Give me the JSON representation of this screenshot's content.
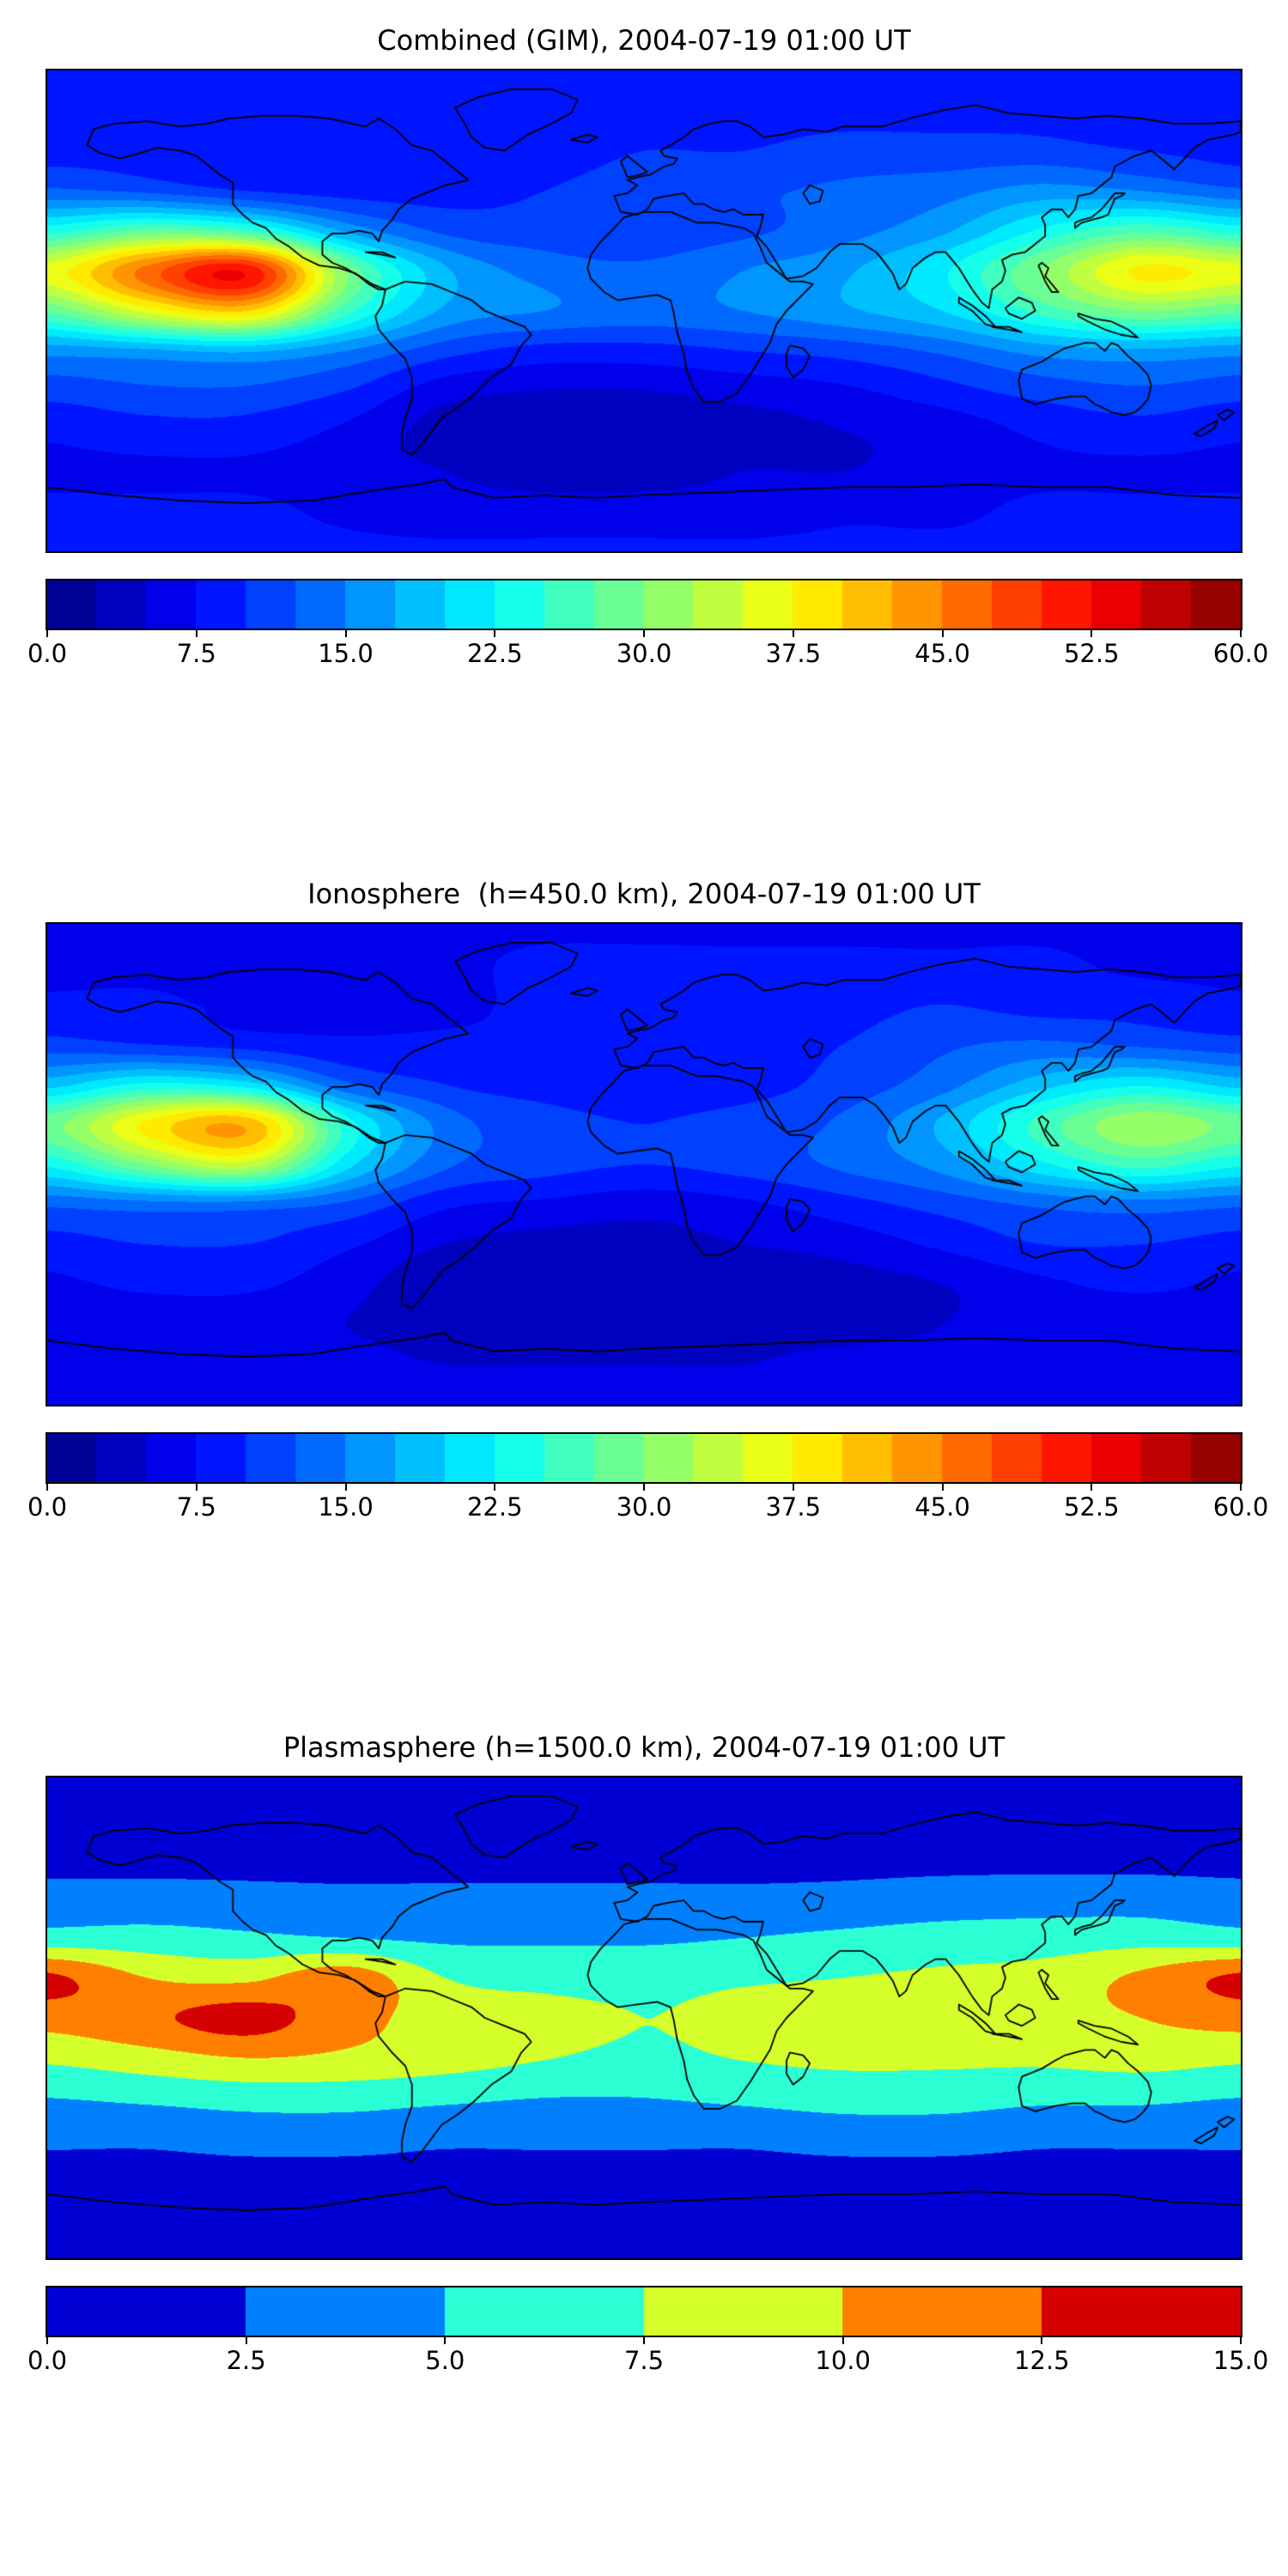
{
  "figure": {
    "background": "#ffffff",
    "map_outline_color": "#000000"
  },
  "chart_data": [
    {
      "type": "heatmap",
      "title": "Combined (GIM), 2004-07-19 01:00 UT",
      "projection": "equirectangular-world-map-with-coastlines",
      "colormap": "jet",
      "levels_min": 0,
      "levels_max": 60,
      "level_step": 2.5,
      "colorbar_orientation": "horizontal",
      "colorbar_ticks": [
        "0.0",
        "7.5",
        "15.0",
        "22.5",
        "30.0",
        "37.5",
        "45.0",
        "52.5",
        "60.0"
      ],
      "grid_lons": [
        -180,
        -150,
        -120,
        -90,
        -60,
        -30,
        0,
        30,
        60,
        90,
        120,
        150,
        180
      ],
      "grid_lats": [
        90,
        75,
        60,
        45,
        30,
        15,
        0,
        -15,
        -30,
        -45,
        -60,
        -75,
        -90
      ],
      "values": [
        [
          8,
          8,
          8,
          8,
          8,
          8,
          8,
          8,
          8,
          8,
          8,
          8,
          8
        ],
        [
          8,
          8,
          8,
          8,
          8,
          9,
          9,
          9,
          9,
          9,
          9,
          8,
          8
        ],
        [
          9,
          9,
          8,
          8,
          8,
          9,
          10,
          10,
          11,
          11,
          11,
          10,
          9
        ],
        [
          13,
          12,
          10,
          9,
          9,
          10,
          11,
          12,
          13,
          14,
          16,
          15,
          13
        ],
        [
          24,
          28,
          26,
          17,
          12,
          11,
          11,
          12,
          14,
          17,
          23,
          27,
          24
        ],
        [
          36,
          46,
          52,
          30,
          18,
          14,
          13,
          15,
          17,
          22,
          30,
          38,
          36
        ],
        [
          28,
          36,
          40,
          26,
          17,
          15,
          14,
          15,
          17,
          20,
          26,
          30,
          28
        ],
        [
          16,
          17,
          18,
          15,
          11,
          9,
          9,
          10,
          11,
          13,
          16,
          17,
          16
        ],
        [
          11,
          12,
          12,
          10,
          6,
          5,
          5,
          6,
          7,
          9,
          11,
          12,
          11
        ],
        [
          8,
          9,
          9,
          7,
          4,
          3,
          3,
          4,
          5,
          6,
          8,
          9,
          8
        ],
        [
          7,
          7,
          7,
          6,
          5,
          4,
          4,
          5,
          5,
          6,
          7,
          7,
          7
        ],
        [
          8,
          8,
          8,
          7,
          6,
          6,
          6,
          6,
          7,
          7,
          8,
          8,
          8
        ],
        [
          8,
          8,
          8,
          8,
          8,
          8,
          8,
          8,
          8,
          8,
          8,
          8,
          8
        ]
      ]
    },
    {
      "type": "heatmap",
      "title": "Ionosphere  (h=450.0 km), 2004-07-19 01:00 UT",
      "projection": "equirectangular-world-map-with-coastlines",
      "colormap": "jet",
      "levels_min": 0,
      "levels_max": 60,
      "level_step": 2.5,
      "colorbar_orientation": "horizontal",
      "colorbar_ticks": [
        "0.0",
        "7.5",
        "15.0",
        "22.5",
        "30.0",
        "37.5",
        "45.0",
        "52.5",
        "60.0"
      ],
      "grid_lons": [
        -180,
        -150,
        -120,
        -90,
        -60,
        -30,
        0,
        30,
        60,
        90,
        120,
        150,
        180
      ],
      "grid_lats": [
        90,
        75,
        60,
        45,
        30,
        15,
        0,
        -15,
        -30,
        -45,
        -60,
        -75,
        -90
      ],
      "values": [
        [
          7,
          7,
          7,
          7,
          7,
          7,
          7,
          7,
          7,
          7,
          7,
          7,
          7
        ],
        [
          7,
          7,
          7,
          7,
          7,
          8,
          8,
          8,
          8,
          8,
          8,
          7,
          7
        ],
        [
          8,
          8,
          7,
          7,
          7,
          8,
          8,
          9,
          9,
          10,
          9,
          9,
          8
        ],
        [
          11,
          10,
          9,
          8,
          8,
          8,
          9,
          9,
          10,
          12,
          13,
          12,
          11
        ],
        [
          19,
          23,
          21,
          13,
          10,
          9,
          9,
          9,
          11,
          14,
          19,
          22,
          19
        ],
        [
          29,
          38,
          42,
          24,
          14,
          11,
          10,
          11,
          13,
          18,
          26,
          32,
          29
        ],
        [
          23,
          30,
          34,
          21,
          13,
          11,
          10,
          11,
          13,
          16,
          22,
          26,
          23
        ],
        [
          13,
          14,
          14,
          12,
          8,
          7,
          6,
          7,
          9,
          11,
          13,
          14,
          13
        ],
        [
          9,
          10,
          10,
          8,
          5,
          4,
          4,
          5,
          6,
          8,
          10,
          10,
          9
        ],
        [
          7,
          8,
          8,
          6,
          3,
          3,
          3,
          3,
          4,
          5,
          7,
          8,
          7
        ],
        [
          6,
          6,
          6,
          5,
          4,
          4,
          4,
          4,
          4,
          5,
          6,
          6,
          6
        ],
        [
          7,
          7,
          7,
          6,
          5,
          5,
          5,
          5,
          6,
          6,
          7,
          7,
          7
        ],
        [
          7,
          7,
          7,
          7,
          7,
          7,
          7,
          7,
          7,
          7,
          7,
          7,
          7
        ]
      ]
    },
    {
      "type": "heatmap",
      "title": "Plasmasphere (h=1500.0 km), 2004-07-19 01:00 UT",
      "projection": "equirectangular-world-map-with-coastlines",
      "colormap": "jet",
      "levels_min": 0,
      "levels_max": 15,
      "level_step": 2.5,
      "colorbar_orientation": "horizontal",
      "colorbar_ticks": [
        "0.0",
        "2.5",
        "5.0",
        "7.5",
        "10.0",
        "12.5",
        "15.0"
      ],
      "grid_lons": [
        -180,
        -150,
        -120,
        -90,
        -60,
        -30,
        0,
        30,
        60,
        90,
        120,
        150,
        180
      ],
      "grid_lats": [
        90,
        75,
        60,
        45,
        30,
        15,
        0,
        -15,
        -30,
        -45,
        -60,
        -75,
        -90
      ],
      "values": [
        [
          1,
          1,
          1,
          1,
          1,
          1,
          1,
          1,
          1,
          1,
          1,
          1,
          1
        ],
        [
          1.2,
          1.2,
          1.2,
          1.2,
          1.2,
          1.2,
          1.2,
          1.2,
          1.2,
          1.2,
          1.2,
          1.2,
          1.2
        ],
        [
          1.8,
          1.8,
          1.8,
          1.8,
          1.8,
          1.8,
          1.8,
          1.8,
          1.8,
          1.8,
          1.8,
          1.8,
          1.8
        ],
        [
          3.4,
          3.4,
          3.2,
          3,
          3,
          3,
          3,
          3,
          3.2,
          3.6,
          3.8,
          3.8,
          3.4
        ],
        [
          6,
          6,
          5.5,
          5,
          4.6,
          4.6,
          4.6,
          5,
          5.5,
          6,
          6.2,
          6.5,
          6
        ],
        [
          13,
          10,
          9.5,
          11.5,
          7.5,
          6.8,
          6.8,
          7.2,
          7.5,
          8,
          8.5,
          10.5,
          13
        ],
        [
          11,
          12,
          13.5,
          11,
          9,
          8.2,
          7.5,
          8,
          8.5,
          9,
          9.2,
          10,
          11
        ],
        [
          8,
          9,
          10,
          9.5,
          8.6,
          7.6,
          7,
          7.6,
          8,
          8,
          8,
          8.5,
          8
        ],
        [
          5,
          5.5,
          6,
          6,
          5.5,
          5,
          5,
          5.5,
          6,
          6,
          5.5,
          5.5,
          5
        ],
        [
          3,
          3,
          3.5,
          3.5,
          3,
          3,
          3,
          3,
          3.5,
          3.5,
          3,
          3,
          3
        ],
        [
          1.6,
          1.6,
          1.6,
          1.6,
          1.6,
          1.6,
          1.6,
          1.6,
          1.6,
          1.6,
          1.6,
          1.6,
          1.6
        ],
        [
          1.1,
          1.1,
          1.1,
          1.1,
          1.1,
          1.1,
          1.1,
          1.1,
          1.1,
          1.1,
          1.1,
          1.1,
          1.1
        ],
        [
          1,
          1,
          1,
          1,
          1,
          1,
          1,
          1,
          1,
          1,
          1,
          1,
          1
        ]
      ]
    }
  ]
}
